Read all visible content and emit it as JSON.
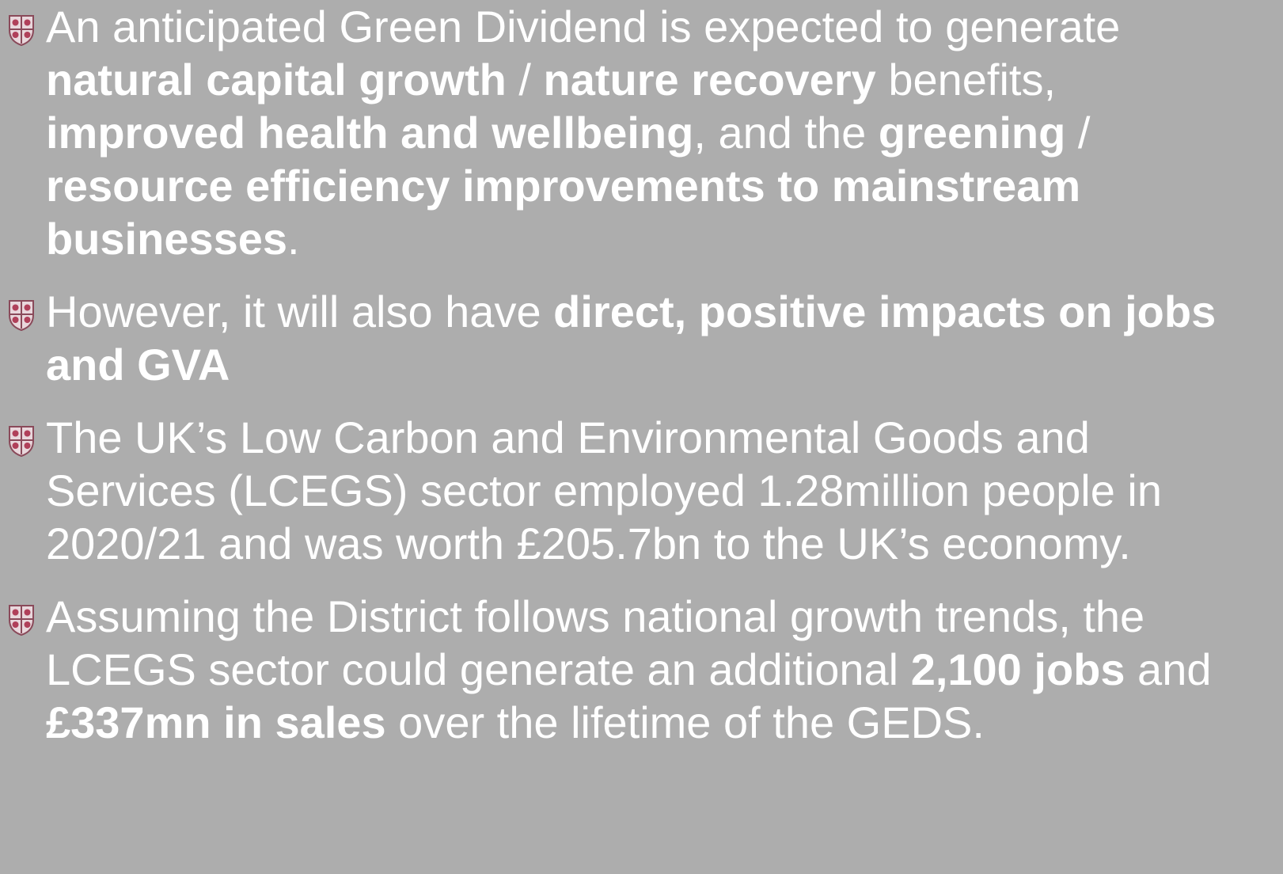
{
  "bullets": [
    {
      "runs": [
        {
          "text": "An anticipated Green Dividend is expected to generate ",
          "bold": false
        },
        {
          "text": "natural capital growth",
          "bold": true
        },
        {
          "text": " / ",
          "bold": false
        },
        {
          "text": "nature recovery",
          "bold": true
        },
        {
          "text": " benefits, ",
          "bold": false
        },
        {
          "text": "improved health and wellbeing",
          "bold": true
        },
        {
          "text": ", and the ",
          "bold": false
        },
        {
          "text": "greening",
          "bold": true
        },
        {
          "text": " / ",
          "bold": false
        },
        {
          "text": "resource efficiency improvements to mainstream businesses",
          "bold": true
        },
        {
          "text": ".",
          "bold": false
        }
      ]
    },
    {
      "runs": [
        {
          "text": "However, it will also have ",
          "bold": false
        },
        {
          "text": "direct, positive impacts on jobs and GVA",
          "bold": true
        }
      ]
    },
    {
      "runs": [
        {
          "text": "The UK’s Low Carbon and Environmental Goods and Services (LCEGS) sector employed 1.28million people in 2020/21 and was worth £205.7bn to the UK’s economy.",
          "bold": false
        }
      ]
    },
    {
      "runs": [
        {
          "text": "Assuming the District follows national growth trends, the LCEGS sector could generate an additional ",
          "bold": false
        },
        {
          "text": "2,100 jobs",
          "bold": true
        },
        {
          "text": " and ",
          "bold": false
        },
        {
          "text": "£337mn in sales",
          "bold": true
        },
        {
          "text": " over the lifetime of the GEDS.",
          "bold": false
        }
      ]
    }
  ]
}
